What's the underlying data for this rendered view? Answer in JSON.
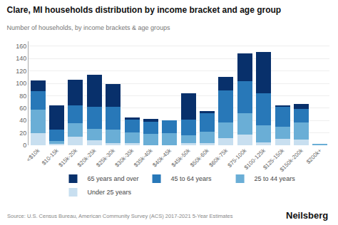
{
  "chart_data": {
    "type": "bar",
    "title": "Clare, MI households distribution by income bracket and age group",
    "subtitle": "Number of households, by income brackets & age groups",
    "annotations": [
      "Source: U.S. Census Bureau, American Community Survey (ACS) 2017-2021 5-Year Estimates",
      "Neilsberg"
    ],
    "categories": [
      "<$10k",
      "$10-15k",
      "$15k-20k",
      "$20k-25k",
      "$25k-30k",
      "$30k-35k",
      "$35k-40k",
      "$40k-45k",
      "$45k-50k",
      "$50k-60k",
      "$60k-75k",
      "$75-100k",
      "$100-125k",
      "$125-150k",
      "$150k-200k",
      "$200k+"
    ],
    "series": [
      {
        "name": "Under 25 years",
        "color": "#c8dff0",
        "values": [
          20,
          2,
          14,
          8,
          3,
          3,
          0,
          0,
          4,
          4,
          12,
          17,
          5,
          10,
          9,
          0
        ]
      },
      {
        "name": "25 to 44 years",
        "color": "#6aaed6",
        "values": [
          37,
          5,
          22,
          18,
          22,
          18,
          18,
          20,
          12,
          18,
          25,
          35,
          27,
          20,
          28,
          2
        ]
      },
      {
        "name": "45 to 64 years",
        "color": "#2878b8",
        "values": [
          30,
          18,
          28,
          36,
          37,
          20,
          20,
          20,
          25,
          30,
          52,
          52,
          52,
          33,
          22,
          0
        ]
      },
      {
        "name": "65 years and over",
        "color": "#08306b",
        "values": [
          18,
          40,
          42,
          52,
          37,
          4,
          5,
          0,
          43,
          3,
          22,
          45,
          67,
          2,
          8,
          0
        ]
      }
    ],
    "stacked": true,
    "ylim": [
      0,
      168
    ],
    "yticks": [
      0,
      20,
      40,
      60,
      80,
      100,
      120,
      140,
      160
    ],
    "grid": true,
    "legend": "bottom"
  }
}
